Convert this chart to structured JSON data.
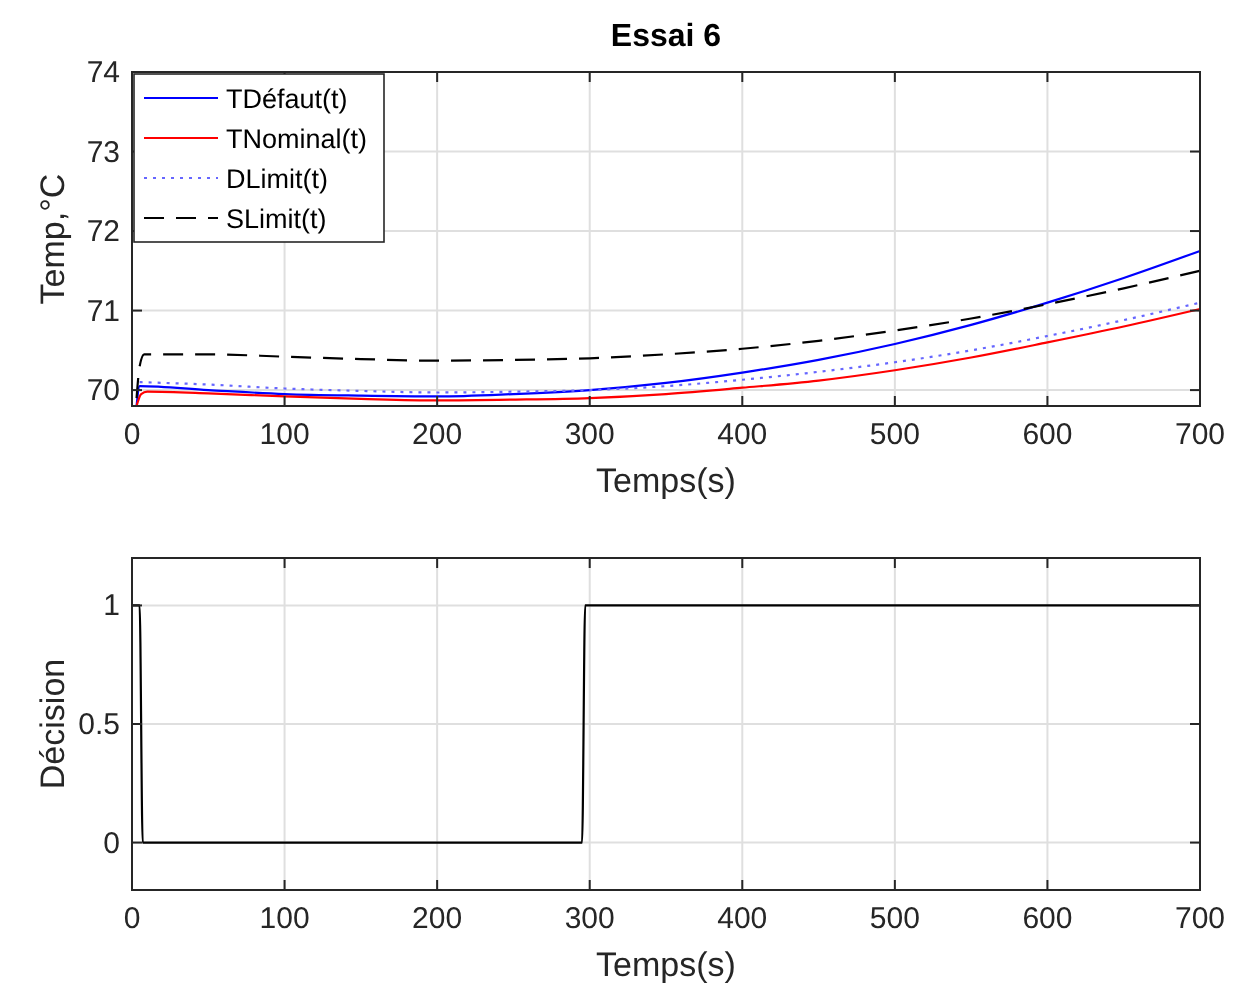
{
  "chart_data": [
    {
      "type": "line",
      "title": "Essai 6",
      "xlabel": "Temps(s)",
      "ylabel": "Temp,°C",
      "xlim": [
        0,
        700
      ],
      "ylim": [
        69.8,
        74
      ],
      "xticks": [
        0,
        100,
        200,
        300,
        400,
        500,
        600,
        700
      ],
      "yticks": [
        70,
        71,
        72,
        73,
        74
      ],
      "grid": true,
      "legend": "top left",
      "series": [
        {
          "name": "TDéfaut(t)",
          "color": "#0000ff",
          "line_style": "solid",
          "x": [
            3,
            5,
            50,
            100,
            150,
            200,
            250,
            300,
            350,
            400,
            450,
            500,
            550,
            600,
            650,
            700
          ],
          "values": [
            69.8,
            70.05,
            70.0,
            69.95,
            69.93,
            69.92,
            69.95,
            70.0,
            70.09,
            70.22,
            70.38,
            70.58,
            70.82,
            71.1,
            71.41,
            71.75
          ]
        },
        {
          "name": "TNominal(t)",
          "color": "#ff0000",
          "line_style": "solid",
          "x": [
            3,
            6,
            10,
            50,
            100,
            150,
            200,
            250,
            300,
            350,
            400,
            450,
            500,
            550,
            600,
            650,
            700
          ],
          "values": [
            69.8,
            69.95,
            69.98,
            69.96,
            69.92,
            69.89,
            69.87,
            69.88,
            69.9,
            69.95,
            70.03,
            70.12,
            70.25,
            70.41,
            70.6,
            70.8,
            71.02
          ]
        },
        {
          "name": "DLimit(t)",
          "color": "#6666ff",
          "line_style": "dotted",
          "x": [
            5,
            50,
            100,
            150,
            200,
            250,
            300,
            350,
            400,
            450,
            500,
            550,
            600,
            650,
            700
          ],
          "values": [
            70.1,
            70.07,
            70.02,
            69.99,
            69.97,
            69.98,
            70.0,
            70.05,
            70.13,
            70.23,
            70.35,
            70.5,
            70.68,
            70.88,
            71.1
          ]
        },
        {
          "name": "SLimit(t)",
          "color": "#000000",
          "line_style": "dashed",
          "x": [
            3,
            5,
            8,
            50,
            100,
            150,
            200,
            250,
            300,
            350,
            400,
            450,
            500,
            550,
            600,
            650,
            700
          ],
          "values": [
            69.9,
            70.3,
            70.45,
            70.45,
            70.42,
            70.39,
            70.37,
            70.38,
            70.4,
            70.45,
            70.52,
            70.62,
            70.75,
            70.9,
            71.08,
            71.28,
            71.5
          ]
        }
      ]
    },
    {
      "type": "line",
      "xlabel": "Temps(s)",
      "ylabel": "Décision",
      "xlim": [
        0,
        700
      ],
      "ylim": [
        -0.2,
        1.2
      ],
      "xticks": [
        0,
        100,
        200,
        300,
        400,
        500,
        600,
        700
      ],
      "yticks": [
        0,
        0.5,
        1
      ],
      "grid": true,
      "legend": false,
      "series": [
        {
          "color": "#000000",
          "line_style": "solid",
          "x": [
            0,
            5,
            7,
            295,
            297,
            700
          ],
          "values": [
            1,
            1,
            0,
            0,
            1,
            1
          ]
        }
      ]
    }
  ]
}
